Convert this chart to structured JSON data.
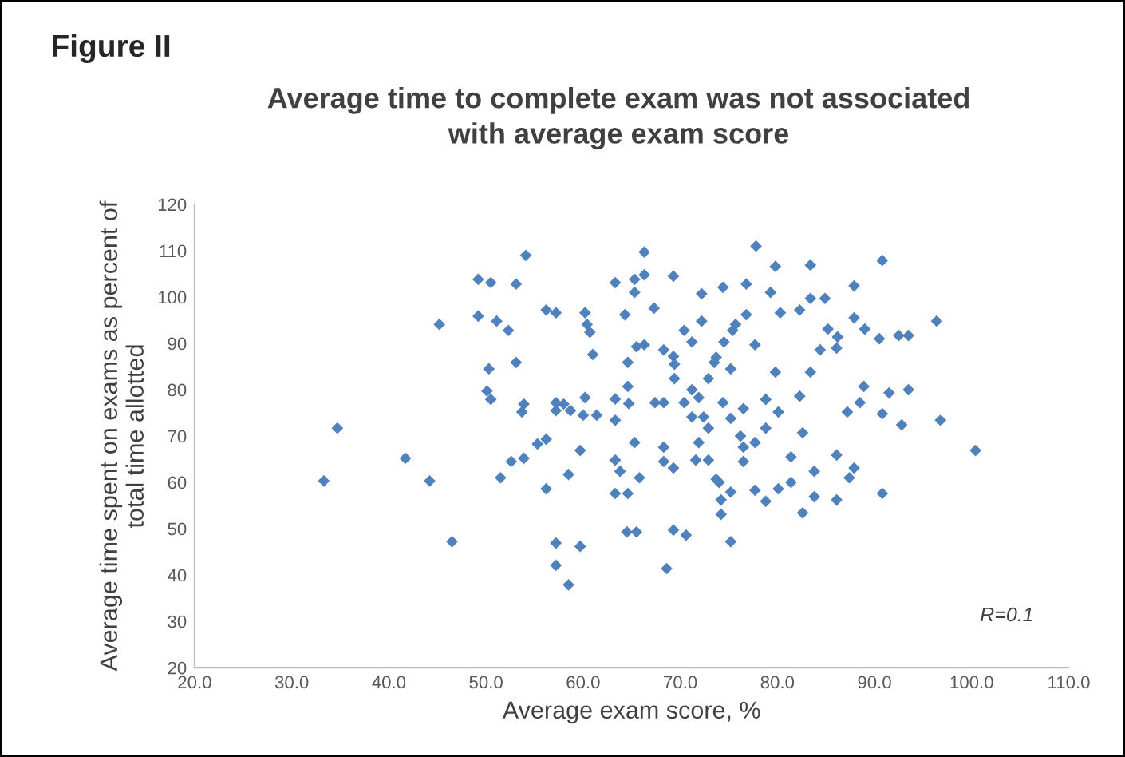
{
  "chart_data": {
    "type": "scatter",
    "title": "Figure II",
    "subtitle": "Average time to complete exam was not associated\nwith average exam score",
    "xlabel": "Average exam score, %",
    "ylabel": "Average time spent on exams as percent of\ntotal time allotted",
    "annotations": [
      "R=0.1"
    ],
    "marker": "diamond",
    "grid": false,
    "legend": false,
    "xlim": [
      20,
      110
    ],
    "xticks": [
      {
        "value": 20,
        "label": "20.0"
      },
      {
        "value": 30,
        "label": "30.0"
      },
      {
        "value": 40,
        "label": "40.0"
      },
      {
        "value": 50,
        "label": "50.0"
      },
      {
        "value": 60,
        "label": "60.0"
      },
      {
        "value": 70,
        "label": "70.0"
      },
      {
        "value": 80,
        "label": "80.0"
      },
      {
        "value": 90,
        "label": "90.0"
      },
      {
        "value": 100,
        "label": "100.0"
      },
      {
        "value": 110,
        "label": "110.0"
      }
    ],
    "ylim": [
      20,
      120
    ],
    "yticks": [
      20,
      30,
      40,
      50,
      60,
      70,
      80,
      90,
      100,
      110,
      120
    ],
    "series": [
      {
        "color": "#4f81bd",
        "x": [
          33.3,
          34.7,
          41.7,
          44.2,
          46.5,
          51.5,
          52.6,
          53.9,
          55.3,
          56.2,
          56.2,
          57.2,
          57.2,
          58.5,
          59.7,
          58.5,
          59.7,
          63.3,
          63.8,
          63.3,
          64.6,
          64.5,
          65.5,
          65.3,
          63.3,
          50.5,
          53.9,
          57.2,
          58.7,
          60.0,
          61.4,
          63.3,
          64.7,
          54.1,
          49.2,
          50.5,
          53.1,
          45.2,
          49.2,
          51.1,
          52.3,
          56.2,
          57.2,
          60.2,
          60.4,
          60.7,
          63.3,
          65.3,
          65.3,
          64.3,
          65.5,
          61.0,
          64.6,
          50.3,
          53.1,
          50.1,
          53.7,
          57.2,
          58.0,
          60.2,
          64.6,
          66.3,
          77.8,
          90.8,
          79.8,
          83.4,
          66.3,
          69.3,
          72.2,
          74.4,
          76.8,
          79.3,
          87.9,
          83.4,
          84.9,
          67.3,
          72.2,
          80.3,
          82.3,
          76.8,
          75.7,
          75.4,
          70.4,
          71.2,
          74.5,
          77.7,
          87.9,
          89.0,
          96.4,
          85.2,
          86.2,
          90.5,
          92.5,
          93.5,
          84.4,
          86.1,
          66.3,
          68.3,
          69.3,
          69.4,
          69.4,
          73.5,
          73.7,
          72.9,
          75.2,
          79.8,
          83.4,
          67.4,
          68.3,
          70.4,
          71.2,
          71.9,
          74.4,
          76.5,
          78.8,
          80.1,
          82.3,
          87.2,
          88.5,
          88.9,
          90.8,
          91.5,
          93.5,
          96.8,
          71.2,
          72.4,
          75.2,
          92.8,
          100.4,
          68.3,
          71.9,
          72.9,
          76.2,
          76.5,
          77.7,
          78.8,
          82.6,
          65.8,
          68.3,
          69.3,
          71.6,
          72.9,
          73.7,
          74.0,
          76.5,
          81.4,
          81.4,
          83.8,
          86.1,
          87.4,
          87.9,
          90.8,
          74.2,
          75.2,
          77.7,
          78.8,
          80.1,
          83.8,
          86.1,
          82.6,
          74.2,
          69.3,
          70.6,
          75.2,
          68.6
        ],
        "values": [
          60.3,
          71.7,
          65.2,
          60.3,
          47.2,
          61,
          64.5,
          65.2,
          68.3,
          69.3,
          58.6,
          46.9,
          42.1,
          37.9,
          46.2,
          61.7,
          66.9,
          64.8,
          62.4,
          57.6,
          57.6,
          49.3,
          49.3,
          68.6,
          73.4,
          77.9,
          76.9,
          75.5,
          75.5,
          74.5,
          74.5,
          78,
          77,
          109,
          103.8,
          103.1,
          102.8,
          94.1,
          95.9,
          94.8,
          92.8,
          97.2,
          96.6,
          96.6,
          94.1,
          92.4,
          103.1,
          103.8,
          101,
          96.2,
          89.3,
          87.6,
          85.9,
          84.5,
          85.9,
          79.7,
          75.2,
          77.2,
          76.9,
          78.3,
          80.7,
          109.7,
          111,
          107.9,
          106.6,
          106.9,
          104.8,
          104.5,
          100.7,
          102.1,
          102.8,
          101,
          102.4,
          99.7,
          99.7,
          97.6,
          94.8,
          96.6,
          97.2,
          96.2,
          94.1,
          92.8,
          92.8,
          90.3,
          90.3,
          89.7,
          95.5,
          93.1,
          94.8,
          93.1,
          91.4,
          91,
          91.7,
          91.7,
          88.6,
          89,
          89.7,
          88.6,
          87.2,
          85.5,
          82.4,
          85.9,
          87,
          82.4,
          84.5,
          83.8,
          83.8,
          77.2,
          77.2,
          77.2,
          80,
          78.3,
          77.2,
          75.9,
          77.9,
          75.2,
          78.6,
          75.2,
          77.2,
          80.7,
          74.8,
          79.3,
          80,
          73.4,
          74.1,
          74.1,
          73.8,
          72.4,
          66.9,
          67.6,
          68.6,
          71.7,
          70,
          67.6,
          68.6,
          71.7,
          70.7,
          61,
          64.5,
          63.1,
          64.8,
          64.8,
          60.7,
          60,
          64.5,
          65.5,
          60,
          62.4,
          65.9,
          61,
          63.1,
          57.6,
          56.2,
          57.9,
          58.3,
          55.9,
          58.6,
          56.9,
          56.2,
          53.4,
          53.1,
          49.7,
          48.6,
          47.2,
          41.4
        ]
      }
    ]
  }
}
